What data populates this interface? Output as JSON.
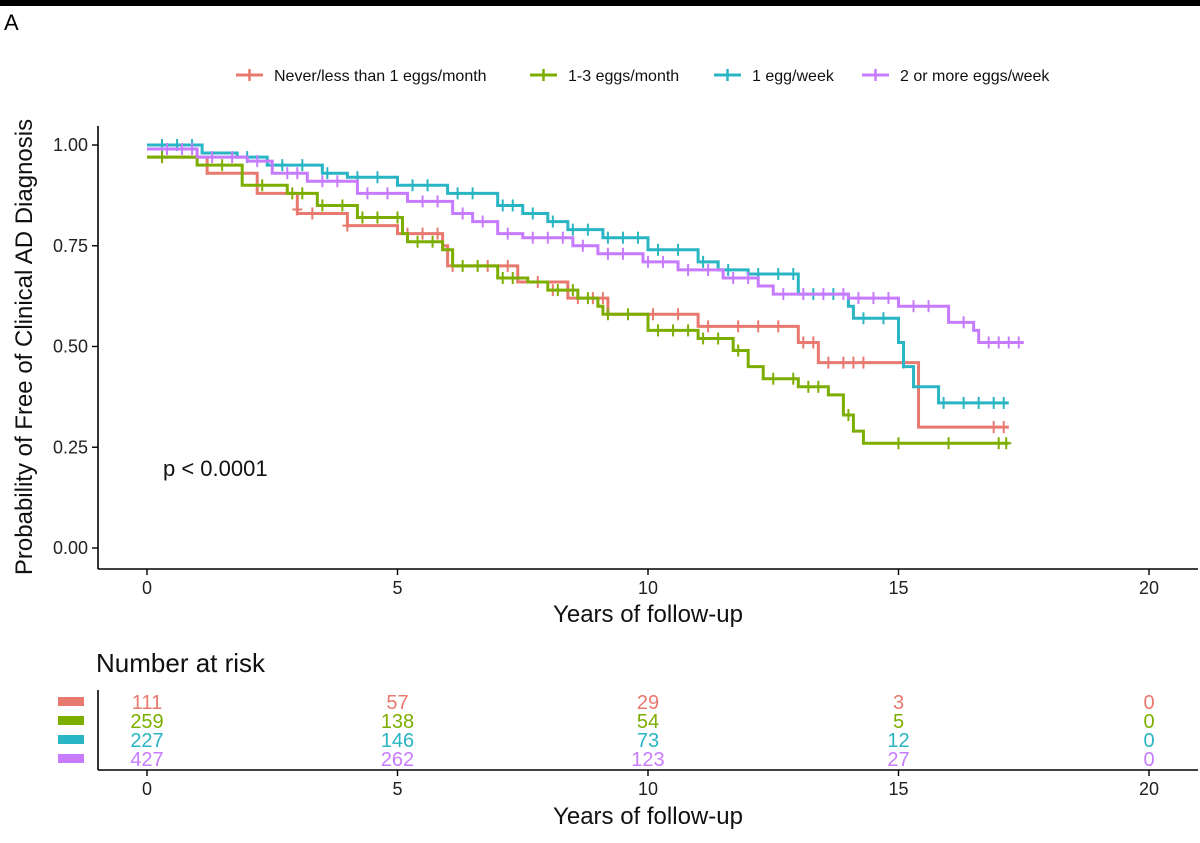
{
  "panel_label": "A",
  "chart_data": {
    "type": "line",
    "subtype": "kaplan-meier",
    "title": "",
    "xlabel": "Years of follow-up",
    "ylabel": "Probability of Free of Clinical AD Diagnosis",
    "xlim": [
      0,
      20
    ],
    "ylim": [
      0,
      1
    ],
    "xticks": [
      "0",
      "5",
      "10",
      "15",
      "20"
    ],
    "yticks": [
      "0.00",
      "0.25",
      "0.50",
      "0.75",
      "1.00"
    ],
    "legend_position": "top",
    "pvalue_label": "p < 0.0001",
    "series": [
      {
        "name": "Never/less than 1 eggs/month",
        "color": "#E8796F",
        "steps": [
          [
            0,
            0.97
          ],
          [
            0.9,
            0.97
          ],
          [
            1.2,
            0.93
          ],
          [
            2.2,
            0.88
          ],
          [
            3.0,
            0.83
          ],
          [
            4.0,
            0.8
          ],
          [
            5.0,
            0.78
          ],
          [
            5.9,
            0.75
          ],
          [
            6.0,
            0.7
          ],
          [
            7.4,
            0.66
          ],
          [
            8.4,
            0.62
          ],
          [
            9.2,
            0.58
          ],
          [
            11.0,
            0.55
          ],
          [
            13.0,
            0.51
          ],
          [
            13.4,
            0.46
          ],
          [
            15.4,
            0.3
          ],
          [
            17.2,
            0.3
          ]
        ],
        "censors": [
          [
            0.3,
            0.97
          ],
          [
            3.0,
            0.84
          ],
          [
            3.3,
            0.83
          ],
          [
            4.0,
            0.8
          ],
          [
            5.2,
            0.78
          ],
          [
            5.5,
            0.78
          ],
          [
            5.8,
            0.78
          ],
          [
            6.1,
            0.7
          ],
          [
            6.8,
            0.7
          ],
          [
            7.2,
            0.7
          ],
          [
            7.8,
            0.66
          ],
          [
            8.1,
            0.64
          ],
          [
            8.6,
            0.62
          ],
          [
            8.9,
            0.62
          ],
          [
            9.1,
            0.62
          ],
          [
            10.1,
            0.58
          ],
          [
            10.6,
            0.58
          ],
          [
            11.2,
            0.55
          ],
          [
            11.8,
            0.55
          ],
          [
            12.2,
            0.55
          ],
          [
            12.6,
            0.55
          ],
          [
            13.1,
            0.51
          ],
          [
            13.3,
            0.51
          ],
          [
            13.6,
            0.46
          ],
          [
            13.9,
            0.46
          ],
          [
            14.1,
            0.46
          ],
          [
            14.3,
            0.46
          ],
          [
            15.1,
            0.46
          ],
          [
            16.9,
            0.3
          ],
          [
            17.1,
            0.3
          ]
        ]
      },
      {
        "name": "1-3 eggs/month",
        "color": "#7CAE00",
        "steps": [
          [
            0,
            0.97
          ],
          [
            1.0,
            0.95
          ],
          [
            1.9,
            0.9
          ],
          [
            2.8,
            0.88
          ],
          [
            3.4,
            0.85
          ],
          [
            4.2,
            0.82
          ],
          [
            5.1,
            0.78
          ],
          [
            5.2,
            0.76
          ],
          [
            5.9,
            0.74
          ],
          [
            6.1,
            0.7
          ],
          [
            7.0,
            0.67
          ],
          [
            7.6,
            0.66
          ],
          [
            8.0,
            0.64
          ],
          [
            8.6,
            0.62
          ],
          [
            9.0,
            0.6
          ],
          [
            9.1,
            0.58
          ],
          [
            10.0,
            0.54
          ],
          [
            11.0,
            0.52
          ],
          [
            11.7,
            0.49
          ],
          [
            12.0,
            0.45
          ],
          [
            12.3,
            0.42
          ],
          [
            13.0,
            0.4
          ],
          [
            13.6,
            0.38
          ],
          [
            13.9,
            0.33
          ],
          [
            14.1,
            0.29
          ],
          [
            14.3,
            0.26
          ],
          [
            17.2,
            0.26
          ]
        ],
        "censors": [
          [
            0.3,
            0.97
          ],
          [
            1.5,
            0.95
          ],
          [
            2.3,
            0.9
          ],
          [
            2.9,
            0.88
          ],
          [
            3.1,
            0.88
          ],
          [
            3.5,
            0.85
          ],
          [
            3.9,
            0.85
          ],
          [
            4.3,
            0.82
          ],
          [
            4.6,
            0.82
          ],
          [
            5.0,
            0.82
          ],
          [
            5.4,
            0.76
          ],
          [
            5.7,
            0.76
          ],
          [
            6.3,
            0.7
          ],
          [
            6.6,
            0.7
          ],
          [
            7.1,
            0.67
          ],
          [
            7.3,
            0.67
          ],
          [
            8.2,
            0.64
          ],
          [
            8.5,
            0.64
          ],
          [
            8.8,
            0.62
          ],
          [
            9.2,
            0.58
          ],
          [
            9.6,
            0.58
          ],
          [
            10.2,
            0.54
          ],
          [
            10.5,
            0.54
          ],
          [
            10.8,
            0.54
          ],
          [
            11.1,
            0.52
          ],
          [
            11.4,
            0.52
          ],
          [
            11.8,
            0.49
          ],
          [
            12.5,
            0.42
          ],
          [
            12.9,
            0.42
          ],
          [
            13.2,
            0.4
          ],
          [
            13.4,
            0.4
          ],
          [
            14.0,
            0.33
          ],
          [
            15.0,
            0.26
          ],
          [
            16.0,
            0.26
          ],
          [
            17.0,
            0.26
          ],
          [
            17.15,
            0.26
          ]
        ]
      },
      {
        "name": "1 egg/week",
        "color": "#29B5C3",
        "steps": [
          [
            0,
            1.0
          ],
          [
            1.1,
            0.98
          ],
          [
            1.8,
            0.97
          ],
          [
            2.4,
            0.95
          ],
          [
            3.5,
            0.93
          ],
          [
            4.0,
            0.92
          ],
          [
            5.0,
            0.9
          ],
          [
            6.0,
            0.88
          ],
          [
            7.0,
            0.85
          ],
          [
            7.5,
            0.83
          ],
          [
            8.0,
            0.81
          ],
          [
            8.4,
            0.79
          ],
          [
            9.1,
            0.77
          ],
          [
            10.0,
            0.74
          ],
          [
            11.0,
            0.71
          ],
          [
            11.4,
            0.69
          ],
          [
            12.0,
            0.68
          ],
          [
            13.0,
            0.63
          ],
          [
            14.0,
            0.6
          ],
          [
            14.1,
            0.57
          ],
          [
            15.0,
            0.51
          ],
          [
            15.1,
            0.45
          ],
          [
            15.3,
            0.4
          ],
          [
            15.8,
            0.36
          ],
          [
            17.2,
            0.36
          ]
        ],
        "censors": [
          [
            0.3,
            1.0
          ],
          [
            0.6,
            1.0
          ],
          [
            0.9,
            1.0
          ],
          [
            2.0,
            0.97
          ],
          [
            2.7,
            0.95
          ],
          [
            3.1,
            0.95
          ],
          [
            3.6,
            0.93
          ],
          [
            4.2,
            0.92
          ],
          [
            4.6,
            0.92
          ],
          [
            5.3,
            0.9
          ],
          [
            5.6,
            0.9
          ],
          [
            6.2,
            0.88
          ],
          [
            6.5,
            0.88
          ],
          [
            7.1,
            0.85
          ],
          [
            7.3,
            0.85
          ],
          [
            7.7,
            0.83
          ],
          [
            8.1,
            0.81
          ],
          [
            8.5,
            0.79
          ],
          [
            8.8,
            0.79
          ],
          [
            9.2,
            0.77
          ],
          [
            9.5,
            0.77
          ],
          [
            9.8,
            0.77
          ],
          [
            10.2,
            0.74
          ],
          [
            10.6,
            0.74
          ],
          [
            11.1,
            0.71
          ],
          [
            11.6,
            0.69
          ],
          [
            12.2,
            0.68
          ],
          [
            12.6,
            0.68
          ],
          [
            12.9,
            0.68
          ],
          [
            13.3,
            0.63
          ],
          [
            13.7,
            0.63
          ],
          [
            14.3,
            0.57
          ],
          [
            14.7,
            0.57
          ],
          [
            15.9,
            0.36
          ],
          [
            16.3,
            0.36
          ],
          [
            16.6,
            0.36
          ],
          [
            16.9,
            0.36
          ],
          [
            17.1,
            0.36
          ]
        ]
      },
      {
        "name": "2 or more eggs/week",
        "color": "#C77CFF",
        "steps": [
          [
            0,
            0.99
          ],
          [
            1.0,
            0.97
          ],
          [
            2.0,
            0.96
          ],
          [
            2.5,
            0.93
          ],
          [
            3.2,
            0.91
          ],
          [
            4.2,
            0.88
          ],
          [
            5.2,
            0.86
          ],
          [
            6.1,
            0.83
          ],
          [
            6.5,
            0.81
          ],
          [
            7.0,
            0.78
          ],
          [
            7.5,
            0.77
          ],
          [
            8.5,
            0.75
          ],
          [
            9.0,
            0.73
          ],
          [
            9.9,
            0.71
          ],
          [
            10.6,
            0.69
          ],
          [
            11.5,
            0.67
          ],
          [
            12.2,
            0.65
          ],
          [
            12.5,
            0.63
          ],
          [
            14.0,
            0.62
          ],
          [
            15.0,
            0.6
          ],
          [
            16.0,
            0.56
          ],
          [
            16.5,
            0.54
          ],
          [
            16.6,
            0.51
          ],
          [
            17.5,
            0.51
          ]
        ],
        "censors": [
          [
            0.4,
            0.99
          ],
          [
            0.7,
            0.99
          ],
          [
            0.9,
            0.99
          ],
          [
            1.3,
            0.97
          ],
          [
            1.7,
            0.97
          ],
          [
            2.2,
            0.96
          ],
          [
            2.8,
            0.93
          ],
          [
            3.0,
            0.93
          ],
          [
            3.5,
            0.91
          ],
          [
            3.8,
            0.91
          ],
          [
            4.4,
            0.88
          ],
          [
            4.8,
            0.88
          ],
          [
            5.5,
            0.86
          ],
          [
            5.8,
            0.86
          ],
          [
            6.3,
            0.83
          ],
          [
            6.7,
            0.81
          ],
          [
            7.2,
            0.78
          ],
          [
            7.7,
            0.77
          ],
          [
            8.0,
            0.77
          ],
          [
            8.3,
            0.77
          ],
          [
            8.7,
            0.75
          ],
          [
            9.2,
            0.73
          ],
          [
            9.5,
            0.73
          ],
          [
            10.0,
            0.71
          ],
          [
            10.3,
            0.71
          ],
          [
            10.8,
            0.69
          ],
          [
            11.2,
            0.69
          ],
          [
            11.7,
            0.67
          ],
          [
            12.0,
            0.67
          ],
          [
            12.7,
            0.63
          ],
          [
            13.1,
            0.63
          ],
          [
            13.5,
            0.63
          ],
          [
            13.9,
            0.63
          ],
          [
            14.2,
            0.62
          ],
          [
            14.5,
            0.62
          ],
          [
            14.8,
            0.62
          ],
          [
            15.3,
            0.6
          ],
          [
            15.6,
            0.6
          ],
          [
            16.3,
            0.56
          ],
          [
            16.8,
            0.51
          ],
          [
            17.0,
            0.51
          ],
          [
            17.2,
            0.51
          ],
          [
            17.4,
            0.51
          ]
        ]
      }
    ]
  },
  "risk_table": {
    "title": "Number at risk",
    "xlabel": "Years of follow-up",
    "times": [
      0,
      5,
      10,
      15,
      20
    ],
    "tick_labels": [
      "0",
      "5",
      "10",
      "15",
      "20"
    ],
    "rows": [
      {
        "color": "#E8796F",
        "values": [
          "111",
          "57",
          "29",
          "3",
          "0"
        ]
      },
      {
        "color": "#7CAE00",
        "values": [
          "259",
          "138",
          "54",
          "5",
          "0"
        ]
      },
      {
        "color": "#29B5C3",
        "values": [
          "227",
          "146",
          "73",
          "12",
          "0"
        ]
      },
      {
        "color": "#C77CFF",
        "values": [
          "427",
          "262",
          "123",
          "27",
          "0"
        ]
      }
    ]
  }
}
